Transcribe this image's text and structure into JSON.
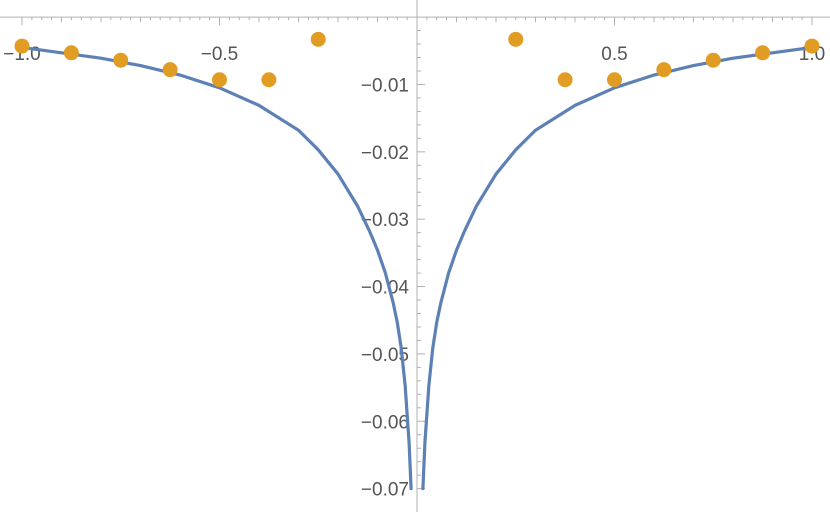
{
  "chart_data": {
    "type": "scatter",
    "title": "",
    "xlabel": "",
    "ylabel": "",
    "xlim": [
      -1.0,
      1.0
    ],
    "ylim": [
      -0.0705,
      0.0015
    ],
    "axes_origin": [
      0,
      0
    ],
    "grid": false,
    "x_ticks": [
      {
        "value": -1.0,
        "label": "−1.0"
      },
      {
        "value": -0.5,
        "label": "−0.5"
      },
      {
        "value": 0.5,
        "label": "0.5"
      },
      {
        "value": 1.0,
        "label": "1.0"
      }
    ],
    "y_ticks": [
      {
        "value": -0.01,
        "label": "−0.01"
      },
      {
        "value": -0.02,
        "label": "−0.02"
      },
      {
        "value": -0.03,
        "label": "−0.03"
      },
      {
        "value": -0.04,
        "label": "−0.04"
      },
      {
        "value": -0.05,
        "label": "−0.05"
      },
      {
        "value": -0.06,
        "label": "−0.06"
      },
      {
        "value": -0.07,
        "label": "−0.07"
      }
    ],
    "series": [
      {
        "kind": "line",
        "color": "#5e81b5",
        "x": [
          -1.0,
          -0.9,
          -0.8,
          -0.7,
          -0.6,
          -0.5,
          -0.4,
          -0.3,
          -0.25,
          -0.2,
          -0.15,
          -0.12,
          -0.1,
          -0.08,
          -0.06,
          -0.05,
          -0.04,
          -0.03,
          -0.02,
          -0.015,
          0.015,
          0.02,
          0.03,
          0.04,
          0.05,
          0.06,
          0.08,
          0.1,
          0.12,
          0.15,
          0.2,
          0.25,
          0.3,
          0.4,
          0.5,
          0.6,
          0.7,
          0.8,
          0.9,
          1.0
        ],
        "y": [
          -0.0045,
          -0.0053,
          -0.0061,
          -0.0072,
          -0.0086,
          -0.0105,
          -0.0131,
          -0.0168,
          -0.0197,
          -0.0233,
          -0.0281,
          -0.0318,
          -0.0346,
          -0.038,
          -0.0425,
          -0.0453,
          -0.0491,
          -0.0547,
          -0.0632,
          -0.07,
          -0.07,
          -0.0632,
          -0.0547,
          -0.0491,
          -0.0453,
          -0.0425,
          -0.038,
          -0.0346,
          -0.0318,
          -0.0281,
          -0.0233,
          -0.0197,
          -0.0168,
          -0.0131,
          -0.0105,
          -0.0086,
          -0.0072,
          -0.0061,
          -0.0053,
          -0.0045
        ]
      },
      {
        "kind": "points",
        "color": "#e19c24",
        "x": [
          -1.0,
          -0.875,
          -0.75,
          -0.625,
          -0.5,
          -0.375,
          -0.25,
          0.25,
          0.375,
          0.5,
          0.625,
          0.75,
          0.875,
          1.0
        ],
        "y": [
          -0.0043,
          -0.0053,
          -0.0064,
          -0.0078,
          -0.0093,
          -0.0093,
          -0.0033,
          -0.0033,
          -0.0093,
          -0.0093,
          -0.0078,
          -0.0064,
          -0.0053,
          -0.0043
        ]
      }
    ]
  }
}
